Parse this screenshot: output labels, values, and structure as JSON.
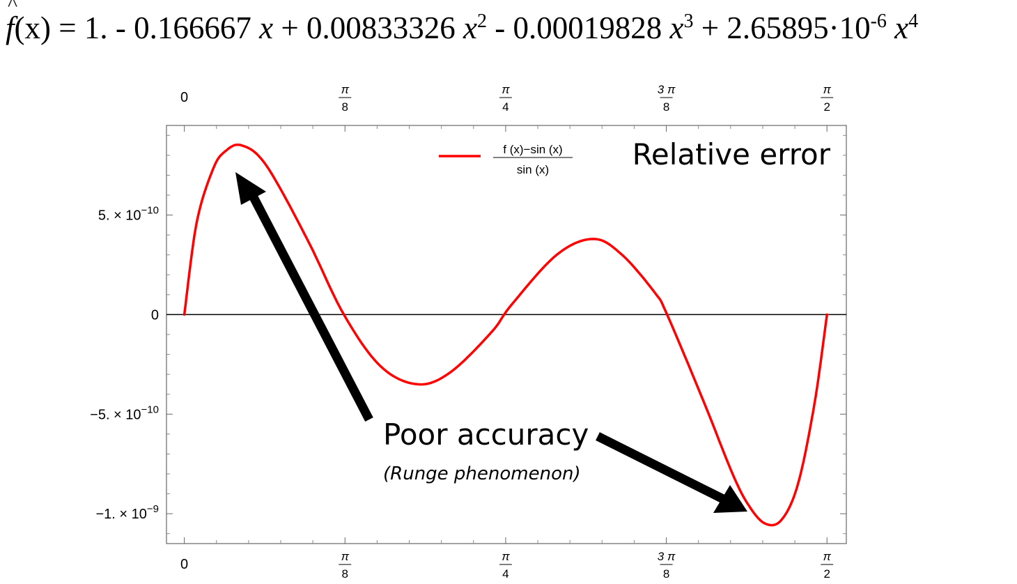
{
  "formula": {
    "lhs": "f",
    "hat": "^",
    "arg": "(x) = 1. - 0.166667 ",
    "var": "x",
    "t2_coef": " + 0.00833326 ",
    "t3_coef": " - 0.00019828 ",
    "t4_coef": " + 2.65895·10",
    "t4_exp": "-6",
    "exp2": "2",
    "exp3": "3",
    "exp4": "4"
  },
  "chart_data": {
    "type": "line",
    "title": "Relative error",
    "legend": {
      "position": "top",
      "label_numerator": "f (x)−sin (x)",
      "label_denominator": "sin (x)"
    },
    "x_unit": "radians",
    "xlim": [
      -0.0436,
      1.6181
    ],
    "ylim": [
      -1.15e-09,
      9.5e-10
    ],
    "x_ticks": [
      {
        "value": 0,
        "label_num": "0",
        "label_den": ""
      },
      {
        "value": 0.3927,
        "label_num": "π",
        "label_den": "8"
      },
      {
        "value": 0.7854,
        "label_num": "π",
        "label_den": "4"
      },
      {
        "value": 1.1781,
        "label_num": "3 π",
        "label_den": "8"
      },
      {
        "value": 1.5708,
        "label_num": "π",
        "label_den": "2"
      }
    ],
    "y_ticks": [
      {
        "value": 5e-10,
        "mantissa": "5. × 10",
        "exp": "−10"
      },
      {
        "value": 0,
        "mantissa": "0",
        "exp": ""
      },
      {
        "value": -5e-10,
        "mantissa": "−5. × 10",
        "exp": "−10"
      },
      {
        "value": -1e-09,
        "mantissa": "−1. × 10",
        "exp": "−9"
      }
    ],
    "grid": false,
    "series": [
      {
        "name": "f (x)−sin (x) / sin (x)",
        "color": "#ff0000",
        "points": [
          [
            0.0,
            0.0
          ],
          [
            0.03,
            4.6e-10
          ],
          [
            0.07,
            7.3e-10
          ],
          [
            0.1,
            8.2e-10
          ],
          [
            0.14,
            8.5e-10
          ],
          [
            0.2,
            7.5e-10
          ],
          [
            0.3,
            3.8e-10
          ],
          [
            0.39,
            0.0
          ],
          [
            0.48,
            -2.6e-10
          ],
          [
            0.57,
            -3.5e-10
          ],
          [
            0.65,
            -2.9e-10
          ],
          [
            0.75,
            -9e-11
          ],
          [
            0.8,
            5e-11
          ],
          [
            0.91,
            3e-10
          ],
          [
            1.0,
            3.8e-10
          ],
          [
            1.07,
            3e-10
          ],
          [
            1.15,
            1.1e-10
          ],
          [
            1.18,
            0.0
          ],
          [
            1.27,
            -4.4e-10
          ],
          [
            1.34,
            -8e-10
          ],
          [
            1.38,
            -9.6e-10
          ],
          [
            1.42,
            -1.05e-09
          ],
          [
            1.46,
            -1.03e-09
          ],
          [
            1.5,
            -8.5e-10
          ],
          [
            1.54,
            -4.5e-10
          ],
          [
            1.5708,
            0.0
          ]
        ]
      }
    ],
    "annotations": [
      {
        "text": "Poor accuracy",
        "role": "heading"
      },
      {
        "text": "(Runge phenomenon)",
        "role": "subheading"
      }
    ]
  },
  "colors": {
    "curve": "#ff0000",
    "axis": "#000000",
    "frame": "#666666",
    "arrow": "#000000"
  }
}
